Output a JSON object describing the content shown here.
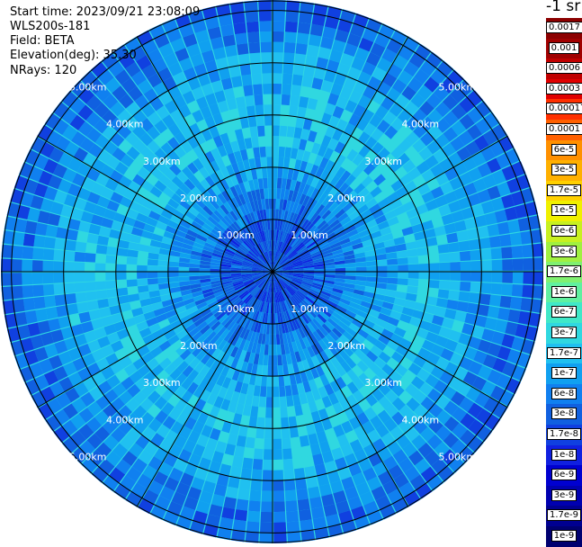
{
  "header": {
    "start_time": "Start time: 2023/09/21 23:08:09",
    "device": "WLS200s-181",
    "field": "Field: BETA",
    "elevation": "Elevation(deg): 35.30",
    "nrays": "NRays: 120"
  },
  "units_label": "-1 sr",
  "chart_data": {
    "type": "heatmap",
    "title": "",
    "projection": "polar",
    "field": "BETA",
    "n_rays": 120,
    "elevation_deg": 35.3,
    "range_rings_km": [
      1,
      2,
      3,
      4,
      5
    ],
    "ring_labels": [
      "1.00km",
      "2.00km",
      "3.00km",
      "4.00km",
      "5.00km"
    ],
    "max_range_km": 5.2,
    "azimuth_lines_deg": [
      0,
      30,
      60,
      90,
      120,
      150,
      180,
      210,
      240,
      270,
      300,
      330
    ],
    "colorbar": {
      "scale": "log",
      "min": 1e-09,
      "max": 0.0017,
      "labels": [
        "0.0017",
        "0.001",
        "0.0006",
        "0.0003",
        "0.00017",
        "0.0001",
        "6e-5",
        "3e-5",
        "1.7e-5",
        "1e-5",
        "6e-6",
        "3e-6",
        "1.7e-6",
        "1e-6",
        "6e-7",
        "3e-7",
        "1.7e-7",
        "1e-7",
        "6e-8",
        "3e-8",
        "1.7e-8",
        "1e-8",
        "6e-9",
        "3e-9",
        "1.7e-9",
        "1e-9"
      ],
      "colors": [
        "#8b0000",
        "#a00000",
        "#c00000",
        "#e00000",
        "#ff3000",
        "#ff6000",
        "#ff9000",
        "#ffb000",
        "#ffd000",
        "#f0f000",
        "#c8f020",
        "#a0f040",
        "#80f070",
        "#60f0a0",
        "#40e8c8",
        "#30d8e0",
        "#20c0f0",
        "#10a0f0",
        "#1080f0",
        "#1060e0",
        "#1040e0",
        "#1020e0",
        "#0000d0",
        "#0000b0",
        "#000090",
        "#000070"
      ]
    },
    "typical_values_by_range_km": [
      {
        "range_km": 0.5,
        "beta": 1.7e-08
      },
      {
        "range_km": 1.0,
        "beta": 3e-08
      },
      {
        "range_km": 2.0,
        "beta": 1e-07
      },
      {
        "range_km": 3.0,
        "beta": 1.7e-07
      },
      {
        "range_km": 4.0,
        "beta": 1e-07
      },
      {
        "range_km": 5.0,
        "beta": 3e-08
      }
    ]
  }
}
